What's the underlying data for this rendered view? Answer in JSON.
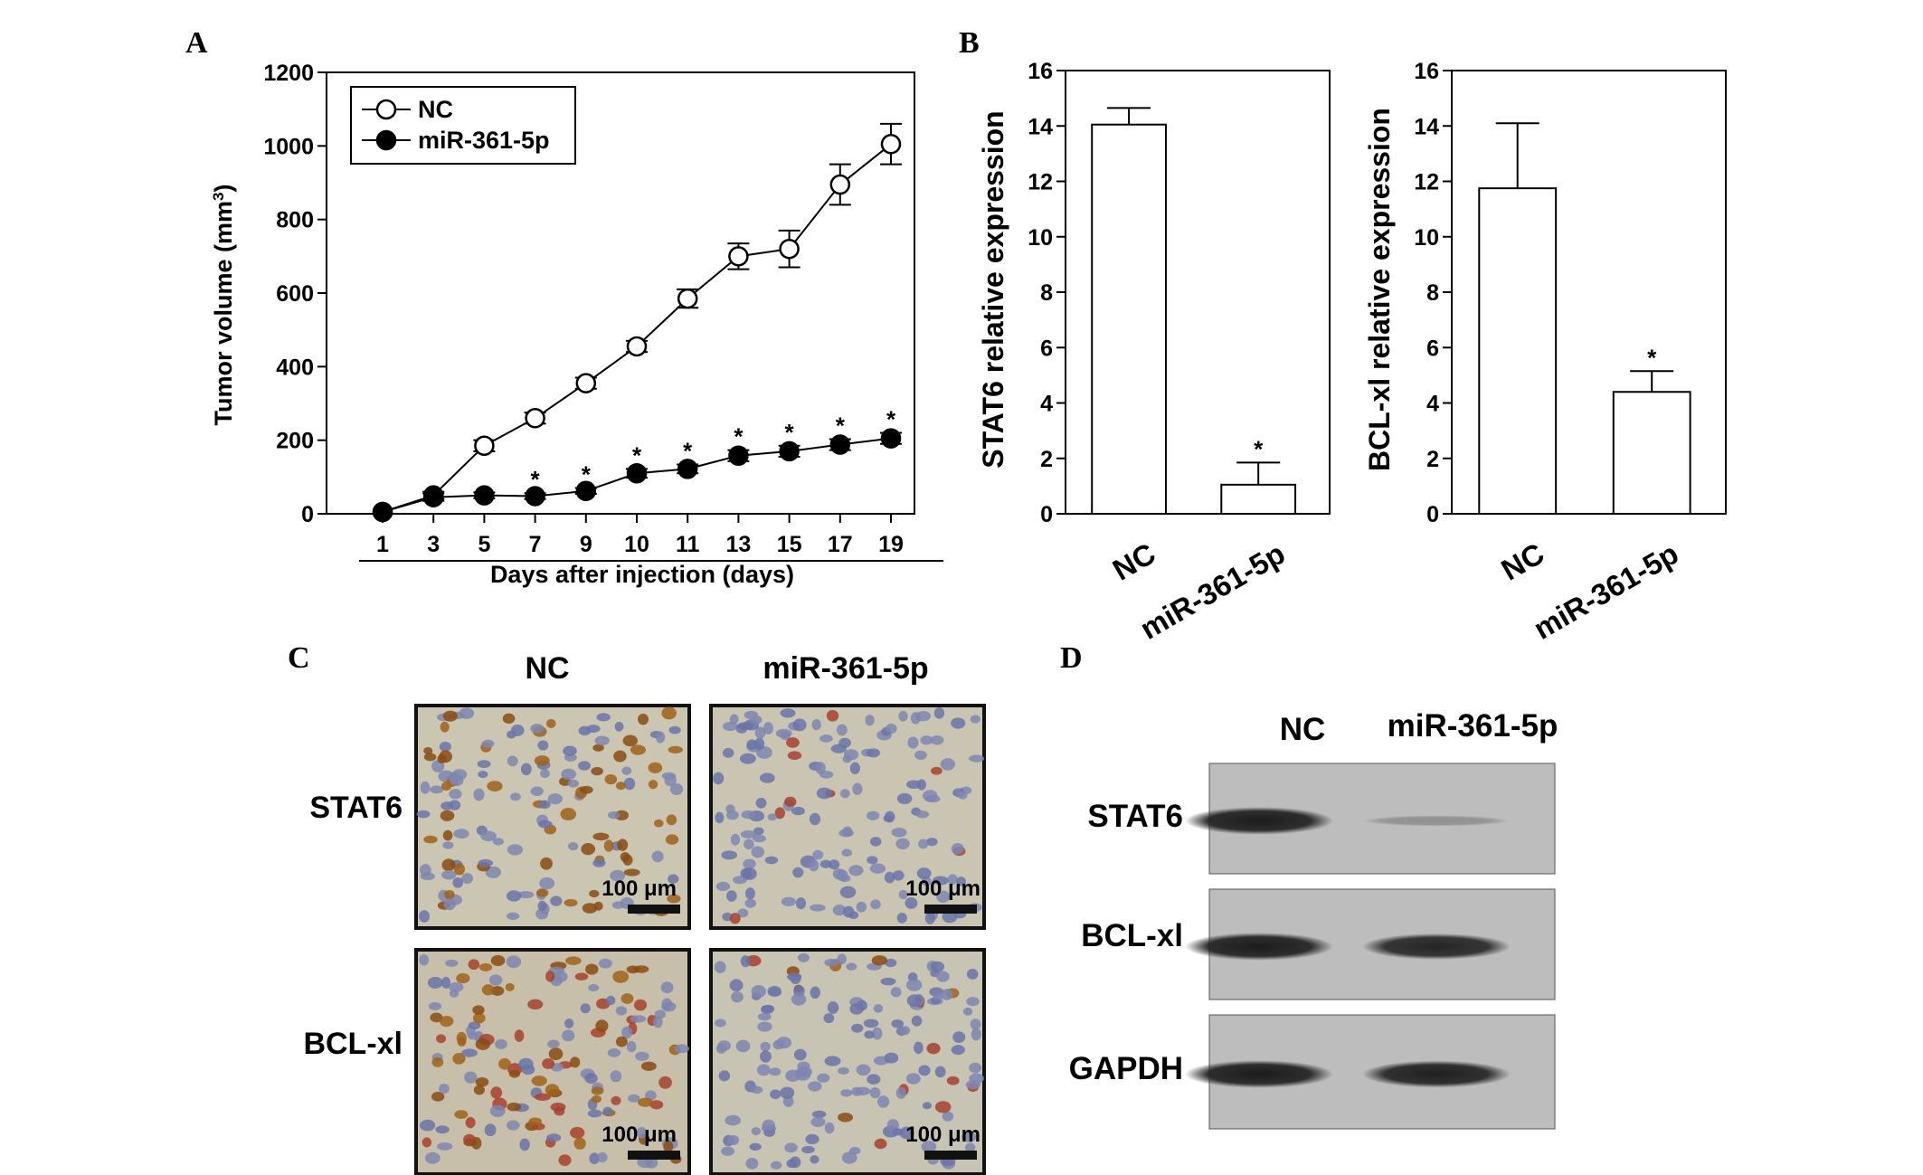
{
  "panels": {
    "a": "A",
    "b": "B",
    "c": "C",
    "d": "D"
  },
  "chart_data": [
    {
      "type": "line",
      "panel": "A",
      "xlabel": "Days after injection (days)",
      "ylabel": "Tumor volume (mm³)",
      "ylabel_main": "Tumor volume (mm",
      "ylabel_sup": "3",
      "ylabel_close": ")",
      "ylim": [
        0,
        1200
      ],
      "yticks": [
        "0",
        "200",
        "400",
        "600",
        "800",
        "1000",
        "1200"
      ],
      "categories": [
        "1",
        "3",
        "5",
        "7",
        "9",
        "10",
        "11",
        "13",
        "15",
        "17",
        "19"
      ],
      "legend_position": "top-left",
      "grid": false,
      "series": [
        {
          "name": "NC",
          "marker": "open-circle",
          "values": [
            5,
            50,
            185,
            260,
            355,
            455,
            585,
            700,
            720,
            895,
            1005
          ],
          "errors": [
            0,
            10,
            15,
            15,
            15,
            15,
            25,
            35,
            50,
            55,
            55
          ],
          "significance": [
            "",
            "",
            "",
            "",
            "",
            "",
            "",
            "",
            "",
            "",
            ""
          ]
        },
        {
          "name": "miR-361-5p",
          "marker": "filled-circle",
          "values": [
            5,
            45,
            50,
            48,
            62,
            110,
            122,
            158,
            170,
            188,
            205
          ],
          "errors": [
            0,
            10,
            8,
            8,
            8,
            12,
            12,
            15,
            15,
            15,
            15
          ],
          "significance": [
            "",
            "",
            "",
            "*",
            "*",
            "*",
            "*",
            "*",
            "*",
            "*",
            "*"
          ]
        }
      ]
    },
    {
      "type": "bar",
      "panel": "B",
      "ylabel": "STAT6 relative expression",
      "ylim": [
        0,
        16
      ],
      "yticks": [
        "0",
        "2",
        "4",
        "6",
        "8",
        "10",
        "12",
        "14",
        "16"
      ],
      "categories": [
        "NC",
        "miR-361-5p"
      ],
      "values": [
        14.05,
        1.05
      ],
      "errors": [
        0.6,
        0.8
      ],
      "significance": [
        "",
        "*"
      ]
    },
    {
      "type": "bar",
      "panel": "B",
      "ylabel": "BCL-xl relative expression",
      "ylim": [
        0,
        16
      ],
      "yticks": [
        "0",
        "2",
        "4",
        "6",
        "8",
        "10",
        "12",
        "14",
        "16"
      ],
      "categories": [
        "NC",
        "miR-361-5p"
      ],
      "values": [
        11.75,
        4.4
      ],
      "errors": [
        2.35,
        0.75
      ],
      "significance": [
        "",
        "*"
      ]
    }
  ],
  "ihc": {
    "columns": [
      "NC",
      "miR-361-5p"
    ],
    "rows": [
      "STAT6",
      "BCL-xl"
    ],
    "scale_label": "100 μm"
  },
  "western": {
    "columns": [
      "NC",
      "miR-361-5p"
    ],
    "rows": [
      "STAT6",
      "BCL-xl",
      "GAPDH"
    ],
    "band_intensity": [
      [
        0.9,
        0.25
      ],
      [
        0.9,
        0.85
      ],
      [
        0.9,
        0.88
      ]
    ]
  }
}
